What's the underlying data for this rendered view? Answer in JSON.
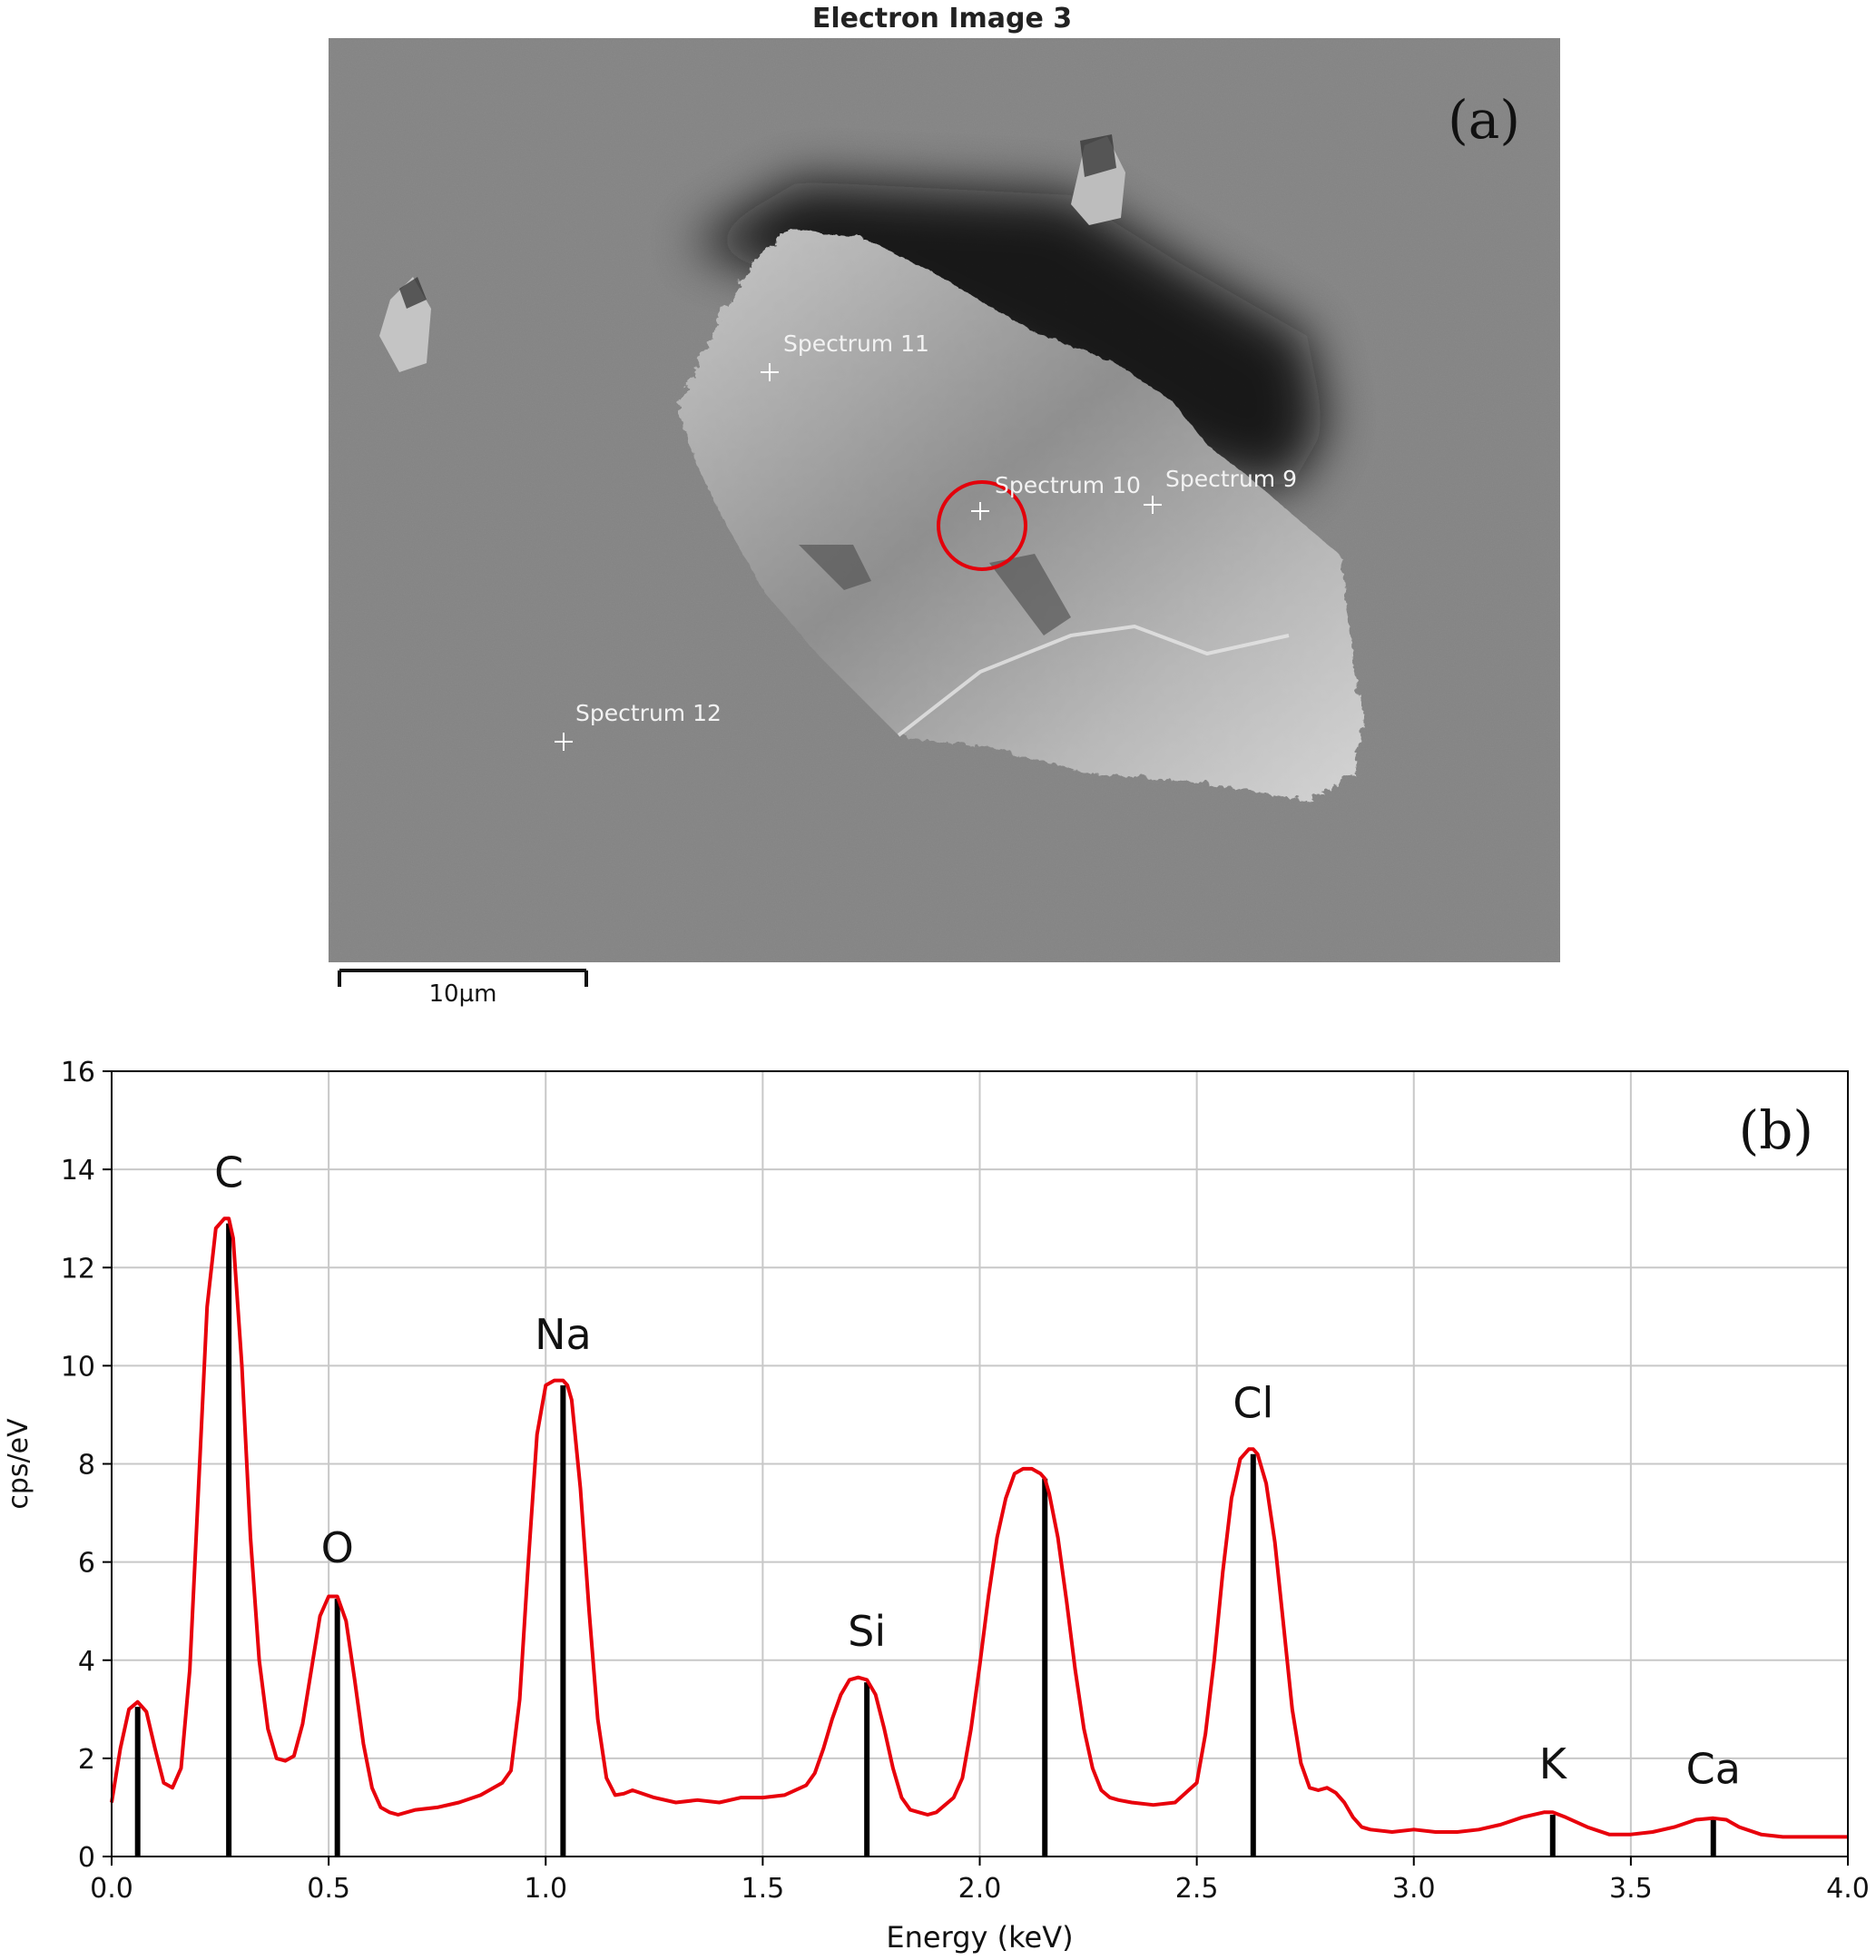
{
  "sem": {
    "title": "Electron Image 3",
    "panel_label": "(a)",
    "scale_bar_label": "10µm",
    "markers": [
      {
        "label": "Spectrum 11"
      },
      {
        "label": "Spectrum 10"
      },
      {
        "label": "Spectrum 9"
      },
      {
        "label": "Spectrum 12"
      }
    ]
  },
  "chart_data": {
    "type": "line",
    "panel_label": "(b)",
    "xlabel": "Energy (keV)",
    "ylabel": "cps/eV",
    "xlim": [
      0.0,
      4.0
    ],
    "ylim": [
      0,
      16
    ],
    "xticks": [
      "0.0",
      "0.5",
      "1.0",
      "1.5",
      "2.0",
      "2.5",
      "3.0",
      "3.5",
      "4.0"
    ],
    "yticks": [
      "0",
      "2",
      "4",
      "6",
      "8",
      "10",
      "12",
      "14",
      "16"
    ],
    "grid": true,
    "line_color": "#e8000b",
    "marker_color": "#000000",
    "spectrum": {
      "x": [
        0.0,
        0.02,
        0.04,
        0.06,
        0.08,
        0.1,
        0.12,
        0.14,
        0.16,
        0.18,
        0.2,
        0.22,
        0.24,
        0.26,
        0.27,
        0.28,
        0.3,
        0.32,
        0.34,
        0.36,
        0.38,
        0.4,
        0.42,
        0.44,
        0.46,
        0.48,
        0.5,
        0.52,
        0.54,
        0.56,
        0.58,
        0.6,
        0.62,
        0.64,
        0.66,
        0.7,
        0.75,
        0.8,
        0.85,
        0.9,
        0.92,
        0.94,
        0.96,
        0.98,
        1.0,
        1.02,
        1.04,
        1.05,
        1.06,
        1.08,
        1.1,
        1.12,
        1.14,
        1.16,
        1.18,
        1.2,
        1.25,
        1.3,
        1.35,
        1.4,
        1.45,
        1.5,
        1.55,
        1.6,
        1.62,
        1.64,
        1.66,
        1.68,
        1.7,
        1.72,
        1.74,
        1.76,
        1.78,
        1.8,
        1.82,
        1.84,
        1.86,
        1.88,
        1.9,
        1.94,
        1.96,
        1.98,
        2.0,
        2.02,
        2.04,
        2.06,
        2.08,
        2.1,
        2.12,
        2.14,
        2.15,
        2.16,
        2.18,
        2.2,
        2.22,
        2.24,
        2.26,
        2.28,
        2.3,
        2.32,
        2.35,
        2.4,
        2.45,
        2.5,
        2.52,
        2.54,
        2.56,
        2.58,
        2.6,
        2.62,
        2.63,
        2.64,
        2.66,
        2.68,
        2.7,
        2.72,
        2.74,
        2.76,
        2.78,
        2.8,
        2.82,
        2.84,
        2.86,
        2.88,
        2.9,
        2.95,
        3.0,
        3.05,
        3.1,
        3.15,
        3.2,
        3.25,
        3.3,
        3.32,
        3.35,
        3.4,
        3.45,
        3.5,
        3.55,
        3.6,
        3.65,
        3.69,
        3.72,
        3.75,
        3.8,
        3.85,
        3.9,
        3.95,
        4.0
      ],
      "y": [
        1.1,
        2.2,
        3.0,
        3.15,
        2.95,
        2.2,
        1.5,
        1.4,
        1.8,
        3.8,
        7.5,
        11.2,
        12.8,
        13.0,
        13.0,
        12.6,
        10.0,
        6.5,
        4.0,
        2.6,
        2.0,
        1.95,
        2.05,
        2.7,
        3.8,
        4.9,
        5.3,
        5.3,
        4.8,
        3.6,
        2.3,
        1.4,
        1.0,
        0.9,
        0.85,
        0.95,
        1.0,
        1.1,
        1.25,
        1.5,
        1.75,
        3.2,
        6.0,
        8.6,
        9.6,
        9.7,
        9.7,
        9.6,
        9.3,
        7.5,
        5.0,
        2.8,
        1.6,
        1.25,
        1.28,
        1.35,
        1.2,
        1.1,
        1.15,
        1.1,
        1.2,
        1.2,
        1.25,
        1.45,
        1.7,
        2.2,
        2.8,
        3.3,
        3.6,
        3.65,
        3.6,
        3.3,
        2.6,
        1.8,
        1.2,
        0.95,
        0.9,
        0.85,
        0.9,
        1.2,
        1.6,
        2.6,
        3.9,
        5.3,
        6.5,
        7.3,
        7.8,
        7.9,
        7.9,
        7.8,
        7.7,
        7.4,
        6.5,
        5.2,
        3.8,
        2.6,
        1.8,
        1.35,
        1.2,
        1.15,
        1.1,
        1.05,
        1.1,
        1.5,
        2.5,
        4.0,
        5.8,
        7.3,
        8.1,
        8.3,
        8.3,
        8.2,
        7.6,
        6.4,
        4.7,
        3.0,
        1.9,
        1.4,
        1.35,
        1.4,
        1.3,
        1.1,
        0.8,
        0.6,
        0.55,
        0.5,
        0.55,
        0.5,
        0.5,
        0.55,
        0.65,
        0.8,
        0.9,
        0.9,
        0.8,
        0.6,
        0.45,
        0.45,
        0.5,
        0.6,
        0.75,
        0.78,
        0.75,
        0.6,
        0.45,
        0.4,
        0.4,
        0.4,
        0.4
      ]
    },
    "peaks": [
      {
        "label": "",
        "x": 0.06,
        "y": 3.05
      },
      {
        "label": "C",
        "x": 0.27,
        "y": 12.9
      },
      {
        "label": "O",
        "x": 0.52,
        "y": 5.25
      },
      {
        "label": "Na",
        "x": 1.04,
        "y": 9.6
      },
      {
        "label": "Si",
        "x": 1.74,
        "y": 3.55
      },
      {
        "label": "",
        "x": 2.15,
        "y": 7.7
      },
      {
        "label": "Cl",
        "x": 2.63,
        "y": 8.2
      },
      {
        "label": "K",
        "x": 3.32,
        "y": 0.85
      },
      {
        "label": "Ca",
        "x": 3.69,
        "y": 0.75
      }
    ]
  }
}
